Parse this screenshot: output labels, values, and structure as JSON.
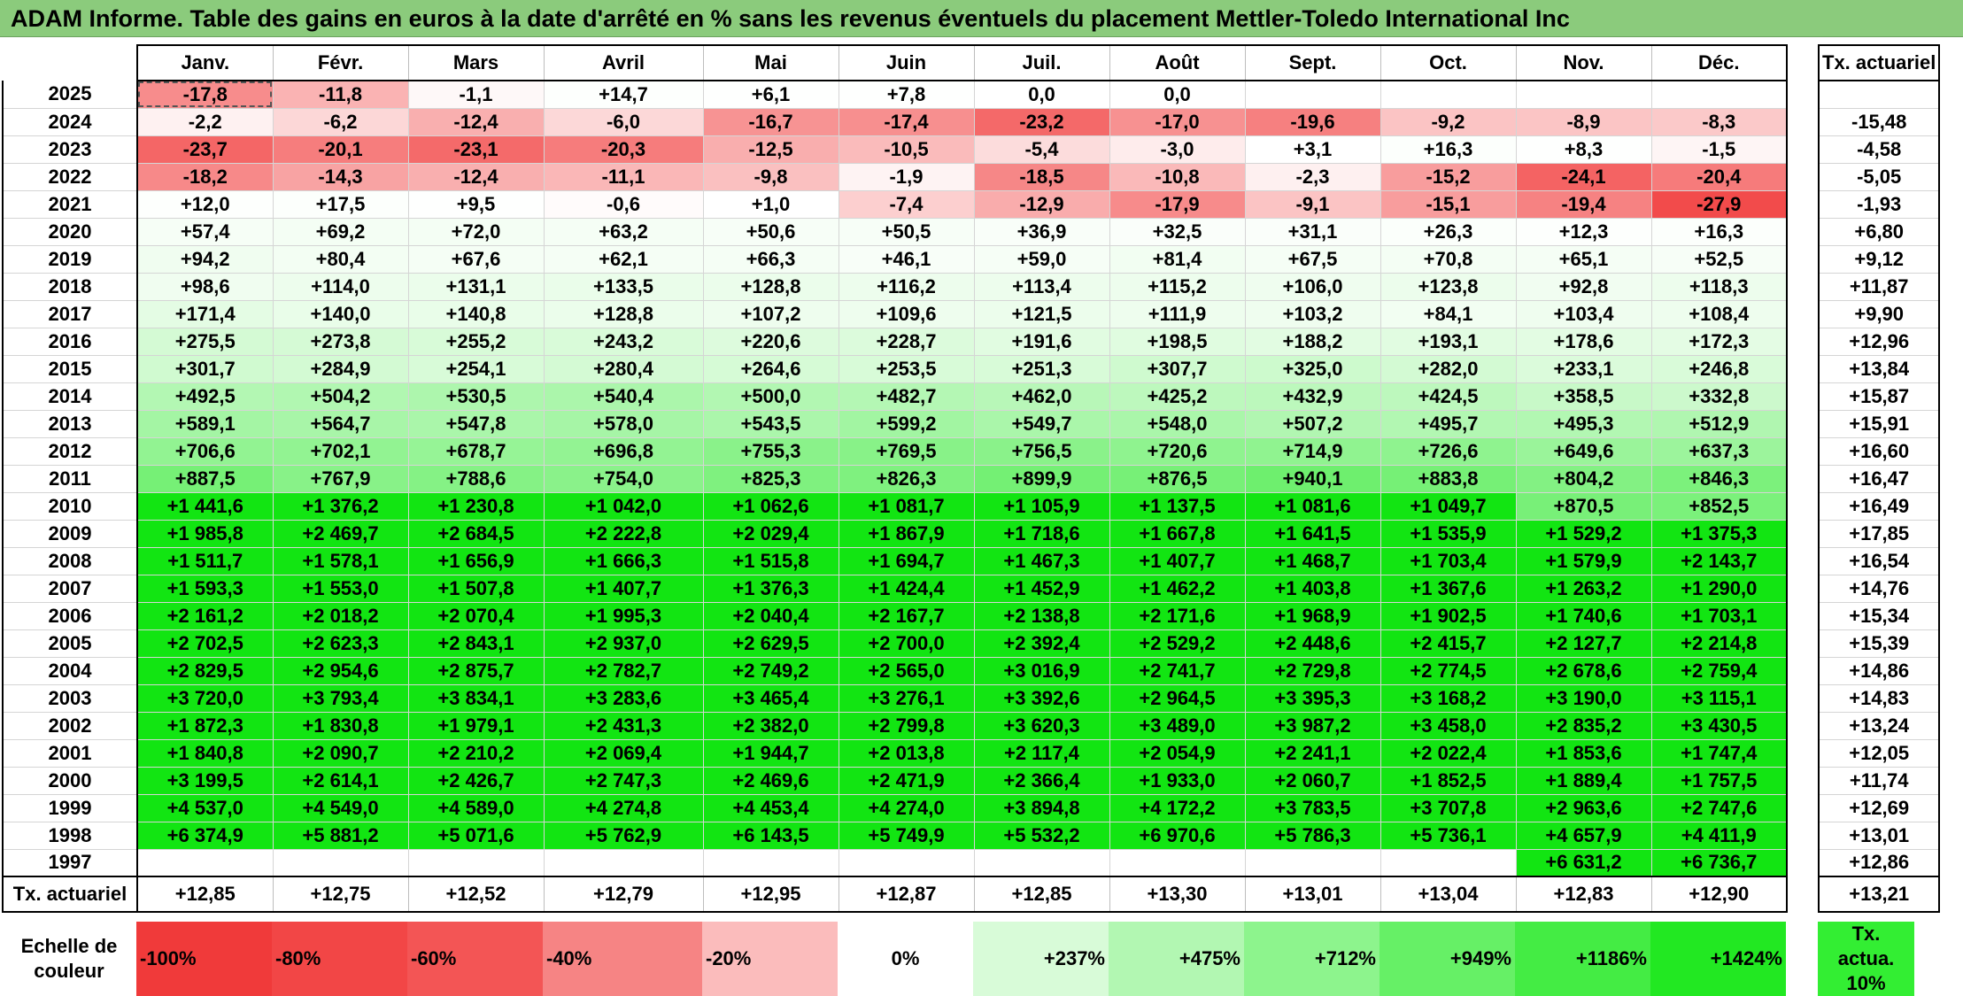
{
  "title": "ADAM Informe. Table des gains en euros à la date d'arrêté en % sans les revenus éventuels du placement Mettler-Toledo International Inc",
  "months": [
    "Janv.",
    "Févr.",
    "Mars",
    "Avril",
    "Mai",
    "Juin",
    "Juil.",
    "Août",
    "Sept.",
    "Oct.",
    "Nov.",
    "Déc."
  ],
  "annual_header": "Tx. actuariel",
  "rows": [
    {
      "year": "2025",
      "cells": [
        "-17,8",
        "-11,8",
        "-1,1",
        "+14,7",
        "+6,1",
        "+7,8",
        "0,0",
        "0,0",
        "",
        "",
        "",
        ""
      ],
      "annual": ""
    },
    {
      "year": "2024",
      "cells": [
        "-2,2",
        "-6,2",
        "-12,4",
        "-6,0",
        "-16,7",
        "-17,4",
        "-23,2",
        "-17,0",
        "-19,6",
        "-9,2",
        "-8,9",
        "-8,3"
      ],
      "annual": "-15,48"
    },
    {
      "year": "2023",
      "cells": [
        "-23,7",
        "-20,1",
        "-23,1",
        "-20,3",
        "-12,5",
        "-10,5",
        "-5,4",
        "-3,0",
        "+3,1",
        "+16,3",
        "+8,3",
        "-1,5"
      ],
      "annual": "-4,58"
    },
    {
      "year": "2022",
      "cells": [
        "-18,2",
        "-14,3",
        "-12,4",
        "-11,1",
        "-9,8",
        "-1,9",
        "-18,5",
        "-10,8",
        "-2,3",
        "-15,2",
        "-24,1",
        "-20,4"
      ],
      "annual": "-5,05"
    },
    {
      "year": "2021",
      "cells": [
        "+12,0",
        "+17,5",
        "+9,5",
        "-0,6",
        "+1,0",
        "-7,4",
        "-12,9",
        "-17,9",
        "-9,1",
        "-15,1",
        "-19,4",
        "-27,9"
      ],
      "annual": "-1,93"
    },
    {
      "year": "2020",
      "cells": [
        "+57,4",
        "+69,2",
        "+72,0",
        "+63,2",
        "+50,6",
        "+50,5",
        "+36,9",
        "+32,5",
        "+31,1",
        "+26,3",
        "+12,3",
        "+16,3"
      ],
      "annual": "+6,80"
    },
    {
      "year": "2019",
      "cells": [
        "+94,2",
        "+80,4",
        "+67,6",
        "+62,1",
        "+66,3",
        "+46,1",
        "+59,0",
        "+81,4",
        "+67,5",
        "+70,8",
        "+65,1",
        "+52,5"
      ],
      "annual": "+9,12"
    },
    {
      "year": "2018",
      "cells": [
        "+98,6",
        "+114,0",
        "+131,1",
        "+133,5",
        "+128,8",
        "+116,2",
        "+113,4",
        "+115,2",
        "+106,0",
        "+123,8",
        "+92,8",
        "+118,3"
      ],
      "annual": "+11,87"
    },
    {
      "year": "2017",
      "cells": [
        "+171,4",
        "+140,0",
        "+140,8",
        "+128,8",
        "+107,2",
        "+109,6",
        "+121,5",
        "+111,9",
        "+103,2",
        "+84,1",
        "+103,4",
        "+108,4"
      ],
      "annual": "+9,90"
    },
    {
      "year": "2016",
      "cells": [
        "+275,5",
        "+273,8",
        "+255,2",
        "+243,2",
        "+220,6",
        "+228,7",
        "+191,6",
        "+198,5",
        "+188,2",
        "+193,1",
        "+178,6",
        "+172,3"
      ],
      "annual": "+12,96"
    },
    {
      "year": "2015",
      "cells": [
        "+301,7",
        "+284,9",
        "+254,1",
        "+280,4",
        "+264,6",
        "+253,5",
        "+251,3",
        "+307,7",
        "+325,0",
        "+282,0",
        "+233,1",
        "+246,8"
      ],
      "annual": "+13,84"
    },
    {
      "year": "2014",
      "cells": [
        "+492,5",
        "+504,2",
        "+530,5",
        "+540,4",
        "+500,0",
        "+482,7",
        "+462,0",
        "+425,2",
        "+432,9",
        "+424,5",
        "+358,5",
        "+332,8"
      ],
      "annual": "+15,87"
    },
    {
      "year": "2013",
      "cells": [
        "+589,1",
        "+564,7",
        "+547,8",
        "+578,0",
        "+543,5",
        "+599,2",
        "+549,7",
        "+548,0",
        "+507,2",
        "+495,7",
        "+495,3",
        "+512,9"
      ],
      "annual": "+15,91"
    },
    {
      "year": "2012",
      "cells": [
        "+706,6",
        "+702,1",
        "+678,7",
        "+696,8",
        "+755,3",
        "+769,5",
        "+756,5",
        "+720,6",
        "+714,9",
        "+726,6",
        "+649,6",
        "+637,3"
      ],
      "annual": "+16,60"
    },
    {
      "year": "2011",
      "cells": [
        "+887,5",
        "+767,9",
        "+788,6",
        "+754,0",
        "+825,3",
        "+826,3",
        "+899,9",
        "+876,5",
        "+940,1",
        "+883,8",
        "+804,2",
        "+846,3"
      ],
      "annual": "+16,47"
    },
    {
      "year": "2010",
      "cells": [
        "+1 441,6",
        "+1 376,2",
        "+1 230,8",
        "+1 042,0",
        "+1 062,6",
        "+1 081,7",
        "+1 105,9",
        "+1 137,5",
        "+1 081,6",
        "+1 049,7",
        "+870,5",
        "+852,5"
      ],
      "annual": "+16,49"
    },
    {
      "year": "2009",
      "cells": [
        "+1 985,8",
        "+2 469,7",
        "+2 684,5",
        "+2 222,8",
        "+2 029,4",
        "+1 867,9",
        "+1 718,6",
        "+1 667,8",
        "+1 641,5",
        "+1 535,9",
        "+1 529,2",
        "+1 375,3"
      ],
      "annual": "+17,85"
    },
    {
      "year": "2008",
      "cells": [
        "+1 511,7",
        "+1 578,1",
        "+1 656,9",
        "+1 666,3",
        "+1 515,8",
        "+1 694,7",
        "+1 467,3",
        "+1 407,7",
        "+1 468,7",
        "+1 703,4",
        "+1 579,9",
        "+2 143,7"
      ],
      "annual": "+16,54"
    },
    {
      "year": "2007",
      "cells": [
        "+1 593,3",
        "+1 553,0",
        "+1 507,8",
        "+1 407,7",
        "+1 376,3",
        "+1 424,4",
        "+1 452,9",
        "+1 462,2",
        "+1 403,8",
        "+1 367,6",
        "+1 263,2",
        "+1 290,0"
      ],
      "annual": "+14,76"
    },
    {
      "year": "2006",
      "cells": [
        "+2 161,2",
        "+2 018,2",
        "+2 070,4",
        "+1 995,3",
        "+2 040,4",
        "+2 167,7",
        "+2 138,8",
        "+2 171,6",
        "+1 968,9",
        "+1 902,5",
        "+1 740,6",
        "+1 703,1"
      ],
      "annual": "+15,34"
    },
    {
      "year": "2005",
      "cells": [
        "+2 702,5",
        "+2 623,3",
        "+2 843,1",
        "+2 937,0",
        "+2 629,5",
        "+2 700,0",
        "+2 392,4",
        "+2 529,2",
        "+2 448,6",
        "+2 415,7",
        "+2 127,7",
        "+2 214,8"
      ],
      "annual": "+15,39"
    },
    {
      "year": "2004",
      "cells": [
        "+2 829,5",
        "+2 954,6",
        "+2 875,7",
        "+2 782,7",
        "+2 749,2",
        "+2 565,0",
        "+3 016,9",
        "+2 741,7",
        "+2 729,8",
        "+2 774,5",
        "+2 678,6",
        "+2 759,4"
      ],
      "annual": "+14,86"
    },
    {
      "year": "2003",
      "cells": [
        "+3 720,0",
        "+3 793,4",
        "+3 834,1",
        "+3 283,6",
        "+3 465,4",
        "+3 276,1",
        "+3 392,6",
        "+2 964,5",
        "+3 395,3",
        "+3 168,2",
        "+3 190,0",
        "+3 115,1"
      ],
      "annual": "+14,83"
    },
    {
      "year": "2002",
      "cells": [
        "+1 872,3",
        "+1 830,8",
        "+1 979,1",
        "+2 431,3",
        "+2 382,0",
        "+2 799,8",
        "+3 620,3",
        "+3 489,0",
        "+3 987,2",
        "+3 458,0",
        "+2 835,2",
        "+3 430,5"
      ],
      "annual": "+13,24"
    },
    {
      "year": "2001",
      "cells": [
        "+1 840,8",
        "+2 090,7",
        "+2 210,2",
        "+2 069,4",
        "+1 944,7",
        "+2 013,8",
        "+2 117,4",
        "+2 054,9",
        "+2 241,1",
        "+2 022,4",
        "+1 853,6",
        "+1 747,4"
      ],
      "annual": "+12,05"
    },
    {
      "year": "2000",
      "cells": [
        "+3 199,5",
        "+2 614,1",
        "+2 426,7",
        "+2 747,3",
        "+2 469,6",
        "+2 471,9",
        "+2 366,4",
        "+1 933,0",
        "+2 060,7",
        "+1 852,5",
        "+1 889,4",
        "+1 757,5"
      ],
      "annual": "+11,74"
    },
    {
      "year": "1999",
      "cells": [
        "+4 537,0",
        "+4 549,0",
        "+4 589,0",
        "+4 274,8",
        "+4 453,4",
        "+4 274,0",
        "+3 894,8",
        "+4 172,2",
        "+3 783,5",
        "+3 707,8",
        "+2 963,6",
        "+2 747,6"
      ],
      "annual": "+12,69"
    },
    {
      "year": "1998",
      "cells": [
        "+6 374,9",
        "+5 881,2",
        "+5 071,6",
        "+5 762,9",
        "+6 143,5",
        "+5 749,9",
        "+5 532,2",
        "+6 970,6",
        "+5 786,3",
        "+5 736,1",
        "+4 657,9",
        "+4 411,9"
      ],
      "annual": "+13,01"
    },
    {
      "year": "1997",
      "cells": [
        "",
        "",
        "",
        "",
        "",
        "",
        "",
        "",
        "",
        "",
        "+6 631,2",
        "+6 736,7"
      ],
      "annual": "+12,86"
    }
  ],
  "footer": {
    "label": "Tx. actuariel",
    "cells": [
      "+12,85",
      "+12,75",
      "+12,52",
      "+12,79",
      "+12,95",
      "+12,87",
      "+12,85",
      "+13,30",
      "+13,01",
      "+13,04",
      "+12,83",
      "+12,90"
    ],
    "annual": "+13,21"
  },
  "legend": {
    "label": "Echelle de couleur",
    "steps": [
      {
        "text": "-100%",
        "color": "#f03a3a"
      },
      {
        "text": "-80%",
        "color": "#f24646"
      },
      {
        "text": "-60%",
        "color": "#f35555"
      },
      {
        "text": "-40%",
        "color": "#f68484"
      },
      {
        "text": "-20%",
        "color": "#fbbcbc"
      },
      {
        "text": "0%",
        "color": "#ffffff"
      },
      {
        "text": "+237%",
        "color": "#d8fbd8"
      },
      {
        "text": "+475%",
        "color": "#b2f7b2"
      },
      {
        "text": "+712%",
        "color": "#8df48d"
      },
      {
        "text": "+949%",
        "color": "#66f066"
      },
      {
        "text": "+1186%",
        "color": "#44ec44"
      },
      {
        "text": "+1424%",
        "color": "#22e822"
      }
    ],
    "annual_label": "Tx. actua. 10%",
    "annual_color": "#33ee33"
  },
  "colors": {
    "title_bar": "#8bcb7c",
    "max_positive": "#12e512",
    "max_negative": "#f24a4a"
  }
}
